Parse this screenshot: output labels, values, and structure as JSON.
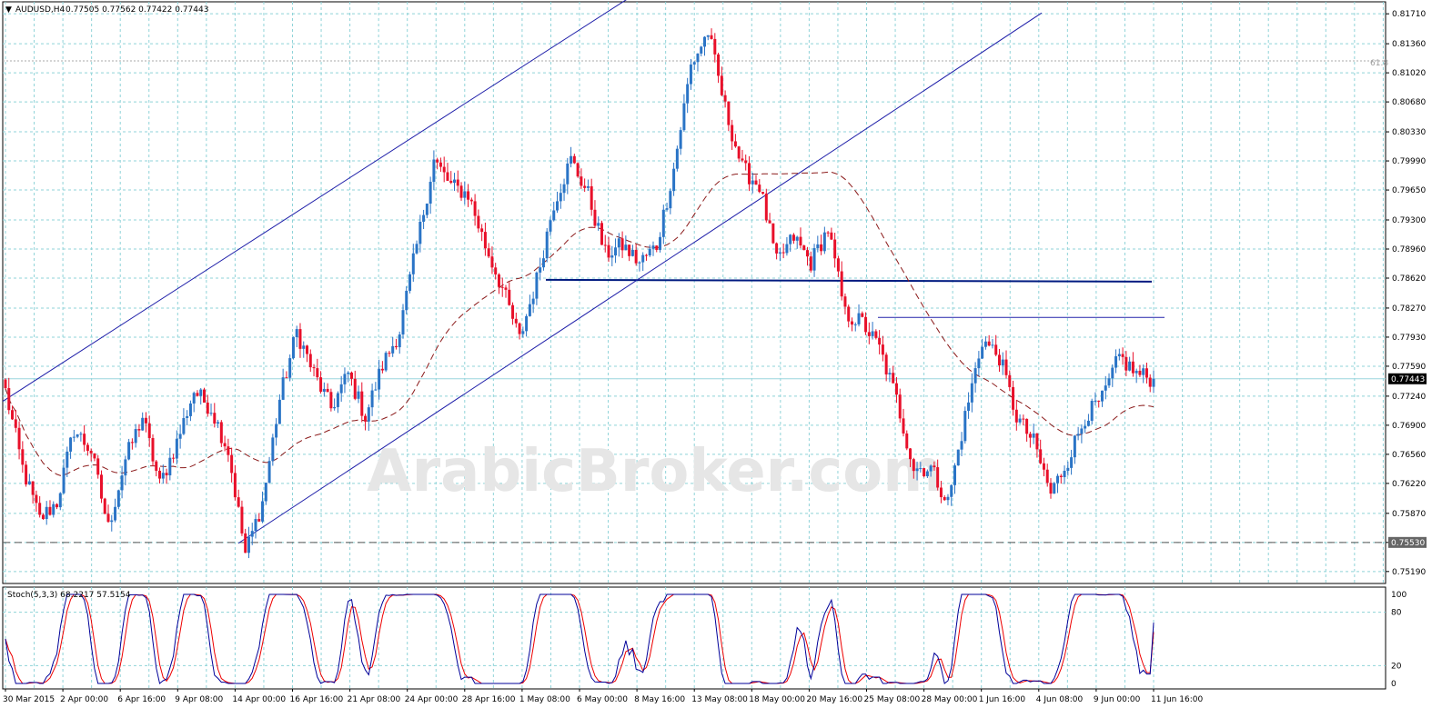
{
  "header": {
    "symbol": "AUDUSD,H4",
    "ohlc": "0.77505 0.77562 0.77422 0.77443"
  },
  "watermark": "ArabicBroker.com",
  "fib_label": "61.8",
  "stoch_label": "Stoch(5,3,3) 68.2217 57.5154",
  "colors": {
    "bull": "#2a74c6",
    "bear": "#e8102a",
    "grid": "#8fd3d8",
    "channel": "#1c1ca8",
    "resistance": "#001a80",
    "ma": "#8b1a1a",
    "stoch_main": "#000099",
    "stoch_signal": "#ee0000"
  },
  "chart_data": {
    "type": "candlestick",
    "symbol": "AUDUSD",
    "timeframe": "H4",
    "price_axis": {
      "ticks": [
        "0.81710",
        "0.81360",
        "0.81020",
        "0.80680",
        "0.80330",
        "0.79990",
        "0.79650",
        "0.79300",
        "0.78960",
        "0.78620",
        "0.78270",
        "0.77930",
        "0.77590",
        "0.77240",
        "0.76900",
        "0.76560",
        "0.76220",
        "0.75870",
        "0.75530",
        "0.75190"
      ],
      "range": [
        0.7505,
        0.8185
      ],
      "current_price_tag": "0.77443",
      "support_tag": "0.75530"
    },
    "time_axis": [
      "30 Mar 2015",
      "2 Apr 00:00",
      "6 Apr 16:00",
      "9 Apr 08:00",
      "14 Apr 00:00",
      "16 Apr 16:00",
      "21 Apr 08:00",
      "24 Apr 00:00",
      "28 Apr 16:00",
      "1 May 08:00",
      "6 May 00:00",
      "8 May 16:00",
      "13 May 08:00",
      "18 May 00:00",
      "20 May 16:00",
      "25 May 08:00",
      "28 May 00:00",
      "1 Jun 16:00",
      "4 Jun 08:00",
      "9 Jun 00:00",
      "11 Jun 16:00"
    ],
    "anchors": [
      0.773,
      0.764,
      0.758,
      0.76,
      0.7685,
      0.766,
      0.757,
      0.765,
      0.77,
      0.762,
      0.767,
      0.773,
      0.771,
      0.766,
      0.754,
      0.76,
      0.772,
      0.78,
      0.775,
      0.771,
      0.775,
      0.77,
      0.776,
      0.78,
      0.79,
      0.8,
      0.797,
      0.796,
      0.79,
      0.785,
      0.779,
      0.786,
      0.795,
      0.8,
      0.796,
      0.789,
      0.79,
      0.788,
      0.79,
      0.799,
      0.811,
      0.815,
      0.806,
      0.799,
      0.797,
      0.788,
      0.791,
      0.788,
      0.792,
      0.782,
      0.781,
      0.778,
      0.772,
      0.764,
      0.764,
      0.76,
      0.77,
      0.779,
      0.777,
      0.77,
      0.767,
      0.761,
      0.765,
      0.77,
      0.772,
      0.777,
      0.775,
      0.7744
    ],
    "close": 0.77443,
    "ohlc_last": {
      "open": 0.77505,
      "high": 0.77562,
      "low": 0.77422,
      "close": 0.77443
    },
    "moving_average": {
      "style": "dashed",
      "color": "#8b1a1a"
    },
    "channel": {
      "upper": [
        [
          0.772,
          0.8196
        ]
      ],
      "lower": [
        [
          0.755,
          0.817
        ]
      ]
    },
    "horizontal_lines": [
      {
        "name": "resistance-1",
        "price": 0.786
      },
      {
        "name": "resistance-2",
        "price": 0.7816
      },
      {
        "name": "support",
        "price": 0.7553,
        "style": "dashed"
      },
      {
        "name": "fib-61.8",
        "price": 0.8116,
        "label": "61.8"
      }
    ],
    "stochastic": {
      "params": "5,3,3",
      "main": 68.2217,
      "signal": 57.5154,
      "levels": [
        80,
        20
      ],
      "axis_ticks": [
        "100",
        "80",
        "20",
        "0"
      ]
    }
  }
}
